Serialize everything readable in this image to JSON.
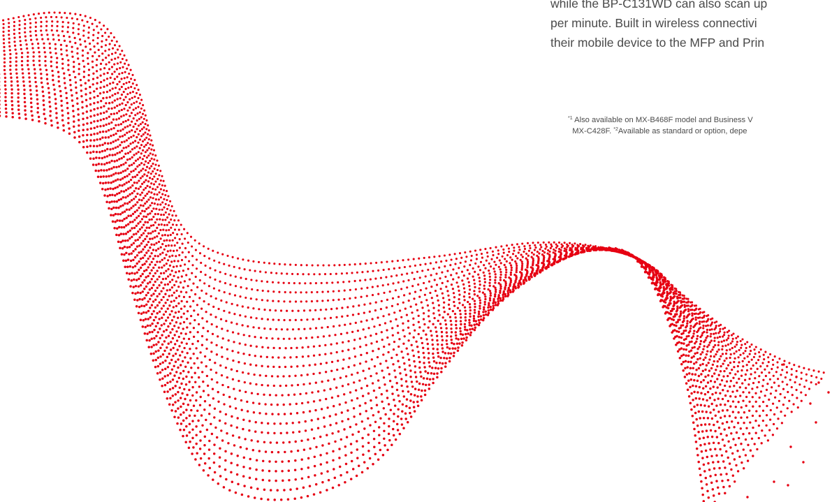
{
  "brand": {
    "accent_color": "#e60012",
    "text_color": "#4a4a4a"
  },
  "body_text": {
    "lines": [
      "while the BP-C131WD can also scan up",
      "per minute. Built in wireless connectivi",
      "their mobile device to the MFP and Prin"
    ]
  },
  "footnotes": {
    "note1_marker": "*1",
    "note1_text": "Also available on MX-B468F model and Business V",
    "note1_cont": "MX-C428F.",
    "note2_marker": "*2",
    "note2_text": "Available as standard or option, depe"
  },
  "decoration": {
    "type": "red-dotted-wave",
    "icon": "dotted-wave-graphic"
  }
}
